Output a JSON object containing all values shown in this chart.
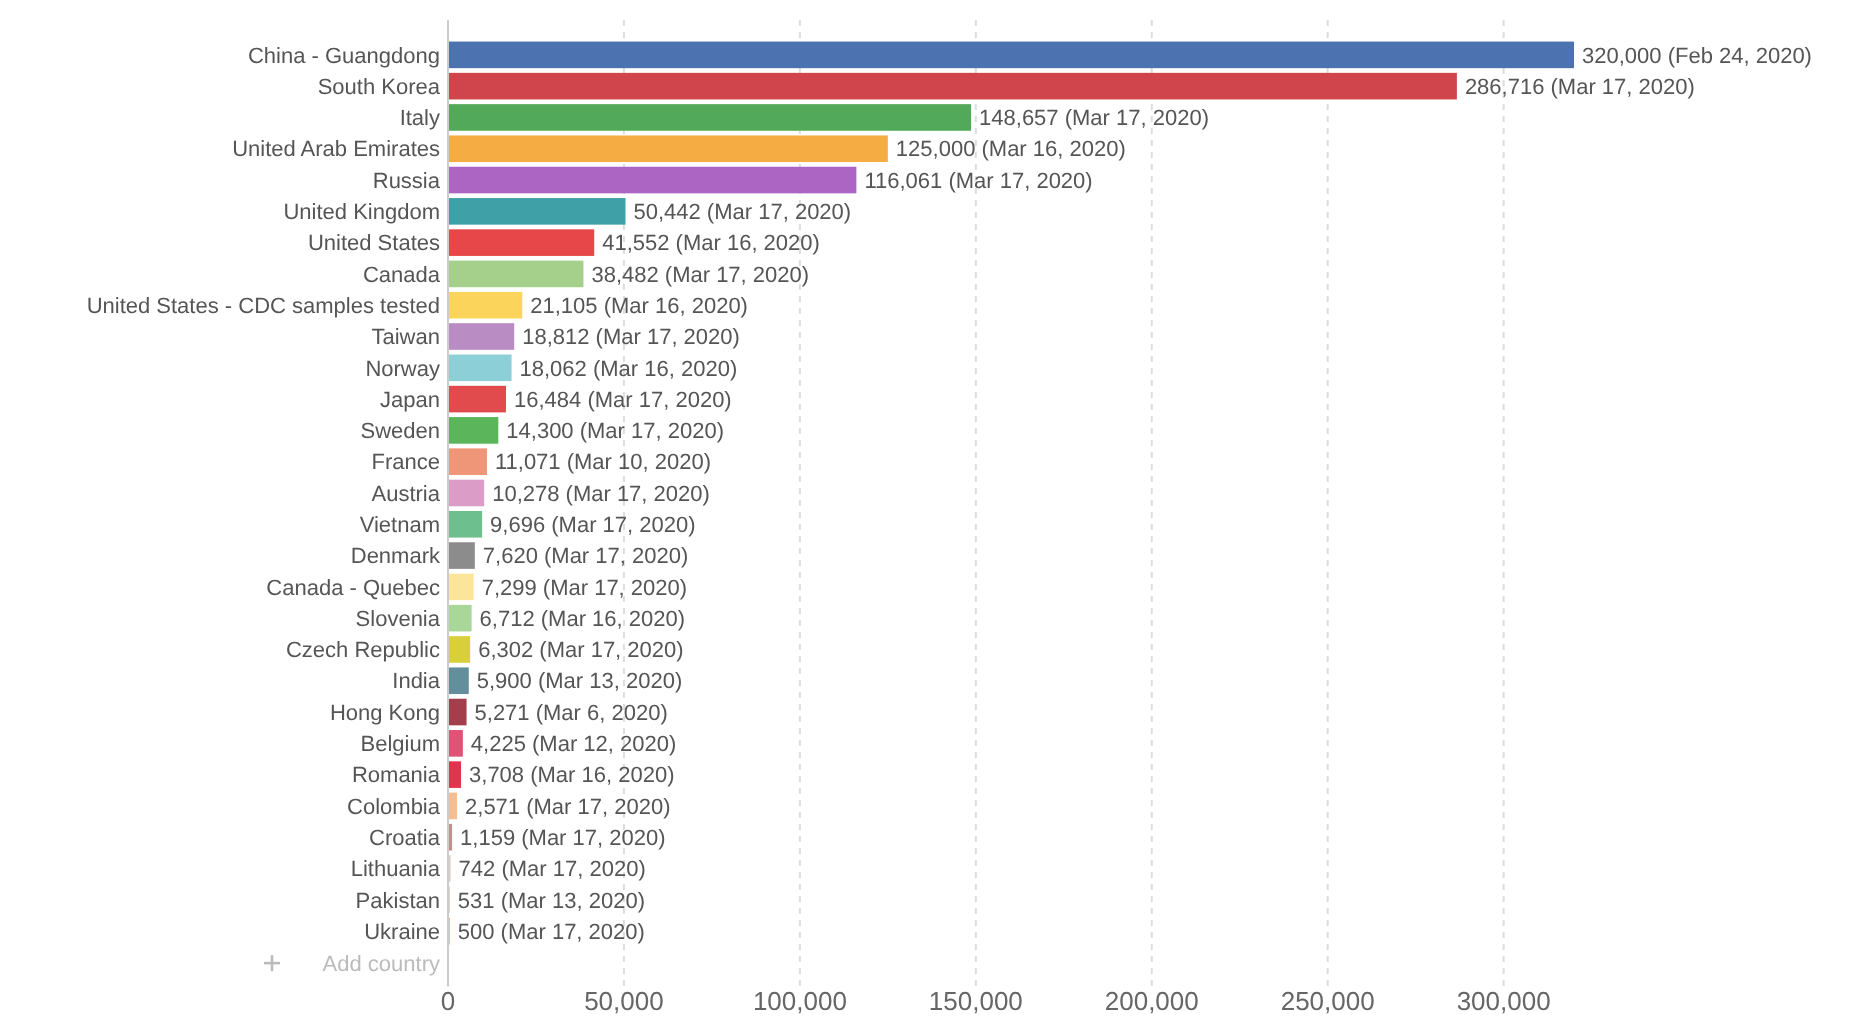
{
  "chart_data": {
    "type": "bar",
    "orientation": "horizontal",
    "categories": [
      "China - Guangdong",
      "South Korea",
      "Italy",
      "United Arab Emirates",
      "Russia",
      "United Kingdom",
      "United States",
      "Canada",
      "United States - CDC samples tested",
      "Taiwan",
      "Norway",
      "Japan",
      "Sweden",
      "France",
      "Austria",
      "Vietnam",
      "Denmark",
      "Canada - Quebec",
      "Slovenia",
      "Czech Republic",
      "India",
      "Hong Kong",
      "Belgium",
      "Romania",
      "Colombia",
      "Croatia",
      "Lithuania",
      "Pakistan",
      "Ukraine"
    ],
    "values": [
      320000,
      286716,
      148657,
      125000,
      116061,
      50442,
      41552,
      38482,
      21105,
      18812,
      18062,
      16484,
      14300,
      11071,
      10278,
      9696,
      7620,
      7299,
      6712,
      6302,
      5900,
      5271,
      4225,
      3708,
      2571,
      1159,
      742,
      531,
      500
    ],
    "colors": [
      "#4c72b0",
      "#d0454c",
      "#52a95a",
      "#f5ad43",
      "#ad65c4",
      "#40a0a8",
      "#e8474a",
      "#a5d08c",
      "#fbd55b",
      "#b98cc4",
      "#8dcfd7",
      "#e24b4e",
      "#5bb55a",
      "#ee9677",
      "#dc9cc8",
      "#6dbf8d",
      "#8c8c8c",
      "#fbe59b",
      "#a9d79a",
      "#d8cf3b",
      "#628f9b",
      "#a33f4b",
      "#e05376",
      "#e0354f",
      "#f4be92",
      "#cd8a8a",
      "#d8d0c8",
      "#d8d0c8",
      "#e8a58a"
    ],
    "value_labels": [
      "320,000 (Feb 24, 2020)",
      "286,716 (Mar 17, 2020)",
      "148,657 (Mar 17, 2020)",
      "125,000 (Mar 16, 2020)",
      "116,061 (Mar 17, 2020)",
      "50,442 (Mar 17, 2020)",
      "41,552 (Mar 16, 2020)",
      "38,482 (Mar 17, 2020)",
      "21,105 (Mar 16, 2020)",
      "18,812 (Mar 17, 2020)",
      "18,062 (Mar 16, 2020)",
      "16,484 (Mar 17, 2020)",
      "14,300 (Mar 17, 2020)",
      "11,071 (Mar 10, 2020)",
      "10,278 (Mar 17, 2020)",
      "9,696 (Mar 17, 2020)",
      "7,620 (Mar 17, 2020)",
      "7,299 (Mar 17, 2020)",
      "6,712 (Mar 16, 2020)",
      "6,302 (Mar 17, 2020)",
      "5,900 (Mar 13, 2020)",
      "5,271 (Mar 6, 2020)",
      "4,225 (Mar 12, 2020)",
      "3,708 (Mar 16, 2020)",
      "2,571 (Mar 17, 2020)",
      "1,159 (Mar 17, 2020)",
      "742 (Mar 17, 2020)",
      "531 (Mar 13, 2020)",
      "500 (Mar 17, 2020)"
    ],
    "xlim": [
      0,
      320000
    ],
    "xticks": [
      {
        "value": 0,
        "label": "0"
      },
      {
        "value": 50000,
        "label": "50,000"
      },
      {
        "value": 100000,
        "label": "100,000"
      },
      {
        "value": 150000,
        "label": "150,000"
      },
      {
        "value": 200000,
        "label": "200,000"
      },
      {
        "value": 250000,
        "label": "250,000"
      },
      {
        "value": 300000,
        "label": "300,000"
      }
    ],
    "grid": "x",
    "annotations": [
      "Add country"
    ]
  }
}
